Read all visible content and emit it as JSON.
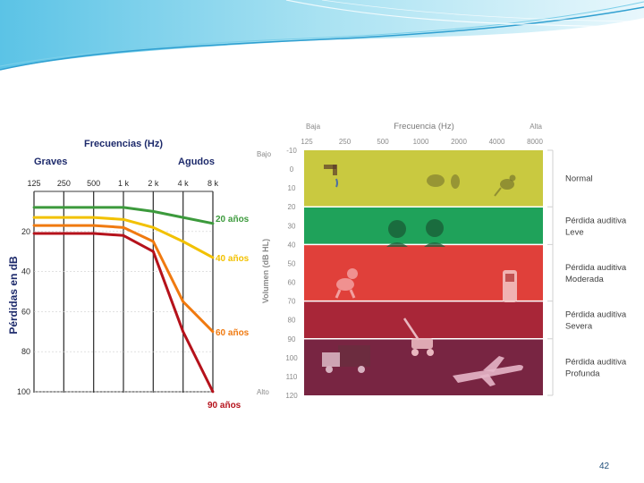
{
  "slide_number": "42",
  "colors": {
    "green_curve": "#3c9a3c",
    "yellow_curve": "#f2c100",
    "orange_curve": "#f07a10",
    "red_curve": "#b5121b",
    "band_normal": "#c9c940",
    "band_leve": "#1fa25a",
    "band_moderada": "#e0403a",
    "band_severa": "#a82638",
    "band_profunda": "#782542"
  },
  "chart_data": [
    {
      "type": "line",
      "title": "Frecuencias (Hz)",
      "left_label": "Graves",
      "right_label": "Agudos",
      "ylabel": "Pérdidas en dB",
      "x_ticks": [
        "125",
        "250",
        "500",
        "1 k",
        "2 k",
        "4 k",
        "8 k"
      ],
      "y_ticks": [
        "20",
        "40",
        "60",
        "80",
        "100"
      ],
      "ylim": [
        0,
        100
      ],
      "series": [
        {
          "name": "20 años",
          "values": [
            8,
            8,
            8,
            8,
            10,
            13,
            16
          ]
        },
        {
          "name": "40 años",
          "values": [
            13,
            13,
            13,
            14,
            18,
            25,
            33
          ]
        },
        {
          "name": "60 años",
          "values": [
            17,
            17,
            17,
            18,
            25,
            55,
            70
          ]
        },
        {
          "name": "90 años",
          "values": [
            21,
            21,
            21,
            22,
            30,
            70,
            100
          ]
        }
      ]
    },
    {
      "type": "table",
      "title": "Frecuencia (Hz)",
      "x_low_label": "Baja",
      "x_high_label": "Alta",
      "y_low_label": "Bajo",
      "y_high_label": "Alto",
      "ylabel": "Volumen (dB HL)",
      "x_ticks": [
        "125",
        "250",
        "500",
        "1000",
        "2000",
        "4000",
        "8000"
      ],
      "y_ticks": [
        "-10",
        "0",
        "10",
        "20",
        "30",
        "40",
        "50",
        "60",
        "70",
        "80",
        "90",
        "100",
        "110",
        "120"
      ],
      "ylim": [
        -10,
        120
      ],
      "bands": [
        {
          "label": "Normal",
          "from": -10,
          "to": 20
        },
        {
          "label": "Pérdida auditiva Leve",
          "from": 20,
          "to": 40
        },
        {
          "label": "Pérdida auditiva Moderada",
          "from": 40,
          "to": 70
        },
        {
          "label": "Pérdida auditiva Severa",
          "from": 70,
          "to": 90
        },
        {
          "label": "Pérdida auditiva Profunda",
          "from": 90,
          "to": 120
        }
      ],
      "icons": [
        "tap-icon",
        "leaves-icon",
        "bird-icon",
        "people-talking-icon",
        "dog-icon",
        "phone-icon",
        "lawnmower-icon",
        "truck-icon",
        "airplane-icon"
      ]
    }
  ]
}
